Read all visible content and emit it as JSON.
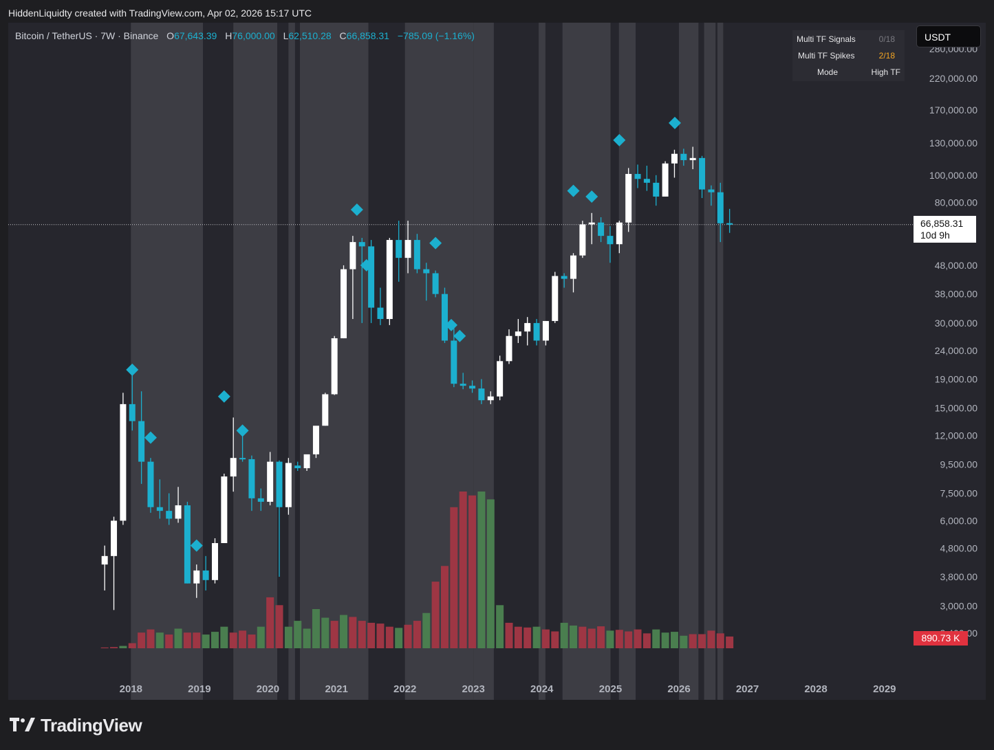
{
  "header": {
    "caption": "HiddenLiquidty created with TradingView.com, Apr 02, 2026 15:17 UTC"
  },
  "legend": {
    "symbol": "Bitcoin / TetherUS · 7W · Binance",
    "open_label": "O",
    "open": "67,643.39",
    "high_label": "H",
    "high": "76,000.00",
    "low_label": "L",
    "low": "62,510.28",
    "close_label": "C",
    "close": "66,858.31",
    "change": "−785.09 (−1.16%)"
  },
  "tf_table": {
    "rows": [
      {
        "label": "Multi TF Signals",
        "value": "0/18"
      },
      {
        "label": "Multi TF Spikes",
        "value": "2/18"
      },
      {
        "label": "Mode",
        "value": "High TF"
      }
    ]
  },
  "currency": "USDT",
  "price_tag": {
    "price": "66,858.31",
    "countdown": "10d 9h"
  },
  "volume_tag": "890.73 K",
  "brand": "TradingView",
  "colors": {
    "up": "#ffffff",
    "down": "#1cb0cf",
    "signal": "#1cb0cf",
    "vol_up": "#4a7e4f",
    "vol_down": "#9e3644",
    "band": "#3d3d44",
    "background": "#26262d"
  },
  "chart_data": {
    "type": "candlestick",
    "y_scale": "log",
    "ylim": [
      2100,
      320000
    ],
    "y_tick_labels": [
      "280,000.00",
      "220,000.00",
      "170,000.00",
      "130,000.00",
      "100,000.00",
      "80,000.00",
      "48,000.00",
      "38,000.00",
      "30,000.00",
      "24,000.00",
      "19,000.00",
      "15,000.00",
      "12,000.00",
      "9,500.00",
      "7,500.00",
      "6,000.00",
      "4,800.00",
      "3,800.00",
      "3,000.00",
      "2,400.00"
    ],
    "x_tick_labels": [
      "2018",
      "2019",
      "2020",
      "2021",
      "2022",
      "2023",
      "2024",
      "2025",
      "2026",
      "2027",
      "2028",
      "2029"
    ],
    "xlim": [
      "2017-06-01",
      "2029-06-01"
    ],
    "current_price": 66858.31,
    "candles": [
      {
        "date": "2017-08-14",
        "o": 4200,
        "h": 4900,
        "l": 3400,
        "c": 4500
      },
      {
        "date": "2017-10-02",
        "o": 4500,
        "h": 6200,
        "l": 2900,
        "c": 6000
      },
      {
        "date": "2017-11-20",
        "o": 6000,
        "h": 17000,
        "l": 5800,
        "c": 15500
      },
      {
        "date": "2018-01-08",
        "o": 15500,
        "h": 19800,
        "l": 12500,
        "c": 13500
      },
      {
        "date": "2018-02-26",
        "o": 13500,
        "h": 17200,
        "l": 8100,
        "c": 9700
      },
      {
        "date": "2018-04-16",
        "o": 9700,
        "h": 10000,
        "l": 6400,
        "c": 6700
      },
      {
        "date": "2018-06-04",
        "o": 6700,
        "h": 8400,
        "l": 6100,
        "c": 6500
      },
      {
        "date": "2018-07-23",
        "o": 6500,
        "h": 7500,
        "l": 5800,
        "c": 6100
      },
      {
        "date": "2018-09-10",
        "o": 6100,
        "h": 7900,
        "l": 5900,
        "c": 6800
      },
      {
        "date": "2018-10-29",
        "o": 6800,
        "h": 7000,
        "l": 3600,
        "c": 3600
      },
      {
        "date": "2018-12-17",
        "o": 3600,
        "h": 4200,
        "l": 3200,
        "c": 4000
      },
      {
        "date": "2019-02-04",
        "o": 4000,
        "h": 4500,
        "l": 3400,
        "c": 3700
      },
      {
        "date": "2019-03-25",
        "o": 3700,
        "h": 5200,
        "l": 3600,
        "c": 5000
      },
      {
        "date": "2019-05-13",
        "o": 5000,
        "h": 8800,
        "l": 5000,
        "c": 8600
      },
      {
        "date": "2019-07-01",
        "o": 8600,
        "h": 13900,
        "l": 7600,
        "c": 10000
      },
      {
        "date": "2019-08-19",
        "o": 10000,
        "h": 12000,
        "l": 9700,
        "c": 9900
      },
      {
        "date": "2019-10-07",
        "o": 9900,
        "h": 10200,
        "l": 6500,
        "c": 7200
      },
      {
        "date": "2019-11-25",
        "o": 7200,
        "h": 7800,
        "l": 6500,
        "c": 7000
      },
      {
        "date": "2020-01-13",
        "o": 7000,
        "h": 10500,
        "l": 6800,
        "c": 9700
      },
      {
        "date": "2020-03-02",
        "o": 9700,
        "h": 9800,
        "l": 3800,
        "c": 6700
      },
      {
        "date": "2020-04-20",
        "o": 6700,
        "h": 10000,
        "l": 6300,
        "c": 9600
      },
      {
        "date": "2020-06-08",
        "o": 9400,
        "h": 9700,
        "l": 9000,
        "c": 9200
      },
      {
        "date": "2020-07-27",
        "o": 9200,
        "h": 10200,
        "l": 9000,
        "c": 10300
      },
      {
        "date": "2020-09-14",
        "o": 10300,
        "h": 11800,
        "l": 10000,
        "c": 13000
      },
      {
        "date": "2020-11-02",
        "o": 13000,
        "h": 17000,
        "l": 13000,
        "c": 16800
      },
      {
        "date": "2020-12-21",
        "o": 16800,
        "h": 27000,
        "l": 16700,
        "c": 26500
      },
      {
        "date": "2021-02-08",
        "o": 26500,
        "h": 48000,
        "l": 26500,
        "c": 46500
      },
      {
        "date": "2021-03-29",
        "o": 46500,
        "h": 61000,
        "l": 31000,
        "c": 58000
      },
      {
        "date": "2021-05-17",
        "o": 58000,
        "h": 60000,
        "l": 30000,
        "c": 56000
      },
      {
        "date": "2021-07-05",
        "o": 56000,
        "h": 59000,
        "l": 30000,
        "c": 34000
      },
      {
        "date": "2021-08-23",
        "o": 34000,
        "h": 40000,
        "l": 29500,
        "c": 31000
      },
      {
        "date": "2021-10-11",
        "o": 31000,
        "h": 60000,
        "l": 29500,
        "c": 59000
      },
      {
        "date": "2021-11-29",
        "o": 59000,
        "h": 69000,
        "l": 42000,
        "c": 51000
      },
      {
        "date": "2022-01-17",
        "o": 51000,
        "h": 69000,
        "l": 45000,
        "c": 59000
      },
      {
        "date": "2022-03-07",
        "o": 59000,
        "h": 62000,
        "l": 45000,
        "c": 46500
      },
      {
        "date": "2022-04-25",
        "o": 46500,
        "h": 49000,
        "l": 36000,
        "c": 45000
      },
      {
        "date": "2022-06-13",
        "o": 45000,
        "h": 46000,
        "l": 37000,
        "c": 38000
      },
      {
        "date": "2022-08-01",
        "o": 38000,
        "h": 40000,
        "l": 25500,
        "c": 26000
      },
      {
        "date": "2022-09-19",
        "o": 26000,
        "h": 29000,
        "l": 17800,
        "c": 18300
      },
      {
        "date": "2022-11-07",
        "o": 18300,
        "h": 20000,
        "l": 17500,
        "c": 18000
      },
      {
        "date": "2022-12-26",
        "o": 18000,
        "h": 18800,
        "l": 17000,
        "c": 17600
      },
      {
        "date": "2023-02-13",
        "o": 17600,
        "h": 19000,
        "l": 15500,
        "c": 16000
      },
      {
        "date": "2023-04-03",
        "o": 16000,
        "h": 17200,
        "l": 15500,
        "c": 16500
      },
      {
        "date": "2023-05-22",
        "o": 16500,
        "h": 23000,
        "l": 16000,
        "c": 22000
      },
      {
        "date": "2023-07-10",
        "o": 22000,
        "h": 28500,
        "l": 21500,
        "c": 27000
      },
      {
        "date": "2023-08-28",
        "o": 27000,
        "h": 31000,
        "l": 25500,
        "c": 28000
      },
      {
        "date": "2023-10-16",
        "o": 28000,
        "h": 31500,
        "l": 25000,
        "c": 30000
      },
      {
        "date": "2023-12-04",
        "o": 30000,
        "h": 31000,
        "l": 25000,
        "c": 26000
      },
      {
        "date": "2024-01-22",
        "o": 26000,
        "h": 30500,
        "l": 25000,
        "c": 30500
      },
      {
        "date": "2024-03-11",
        "o": 30500,
        "h": 45500,
        "l": 30000,
        "c": 44000
      },
      {
        "date": "2024-04-29",
        "o": 44000,
        "h": 45000,
        "l": 40000,
        "c": 43000
      },
      {
        "date": "2024-06-17",
        "o": 43000,
        "h": 53000,
        "l": 38500,
        "c": 52000
      },
      {
        "date": "2024-08-05",
        "o": 52000,
        "h": 69000,
        "l": 51000,
        "c": 67000
      },
      {
        "date": "2024-09-23",
        "o": 67000,
        "h": 73500,
        "l": 57000,
        "c": 68000
      },
      {
        "date": "2024-11-11",
        "o": 68000,
        "h": 71000,
        "l": 58000,
        "c": 61000
      },
      {
        "date": "2024-12-30",
        "o": 61000,
        "h": 66000,
        "l": 49000,
        "c": 57000
      },
      {
        "date": "2025-02-17",
        "o": 57000,
        "h": 69000,
        "l": 53000,
        "c": 68000
      },
      {
        "date": "2025-04-07",
        "o": 68000,
        "h": 106000,
        "l": 63000,
        "c": 101000
      },
      {
        "date": "2025-05-26",
        "o": 101000,
        "h": 109000,
        "l": 90000,
        "c": 97000
      },
      {
        "date": "2025-07-14",
        "o": 97000,
        "h": 108000,
        "l": 88000,
        "c": 94000
      },
      {
        "date": "2025-09-01",
        "o": 94000,
        "h": 100000,
        "l": 78000,
        "c": 84000
      },
      {
        "date": "2025-10-20",
        "o": 84000,
        "h": 112000,
        "l": 84000,
        "c": 110000
      },
      {
        "date": "2025-12-08",
        "o": 110000,
        "h": 123000,
        "l": 98000,
        "c": 119000
      },
      {
        "date": "2026-01-26",
        "o": 119000,
        "h": 124000,
        "l": 108000,
        "c": 113000
      },
      {
        "date": "2026-03-16",
        "o": 113000,
        "h": 126000,
        "l": 105000,
        "c": 115000
      },
      {
        "date": "2026-05-04",
        "o": 115000,
        "h": 117000,
        "l": 83000,
        "c": 89000
      },
      {
        "date": "2026-06-22",
        "o": 89000,
        "h": 92000,
        "l": 78000,
        "c": 87000
      },
      {
        "date": "2026-08-10",
        "o": 87000,
        "h": 94000,
        "l": 58000,
        "c": 67600
      },
      {
        "date": "2026-09-28",
        "o": 67643.39,
        "h": 76000,
        "l": 62510.28,
        "c": 66858.31
      }
    ],
    "volume": [
      2,
      3,
      6,
      13,
      40,
      48,
      40,
      35,
      50,
      40,
      40,
      35,
      42,
      55,
      40,
      45,
      35,
      55,
      130,
      110,
      55,
      70,
      50,
      100,
      78,
      70,
      85,
      80,
      70,
      65,
      63,
      55,
      52,
      60,
      70,
      90,
      170,
      210,
      360,
      400,
      390,
      400,
      380,
      110,
      65,
      55,
      53,
      55,
      48,
      43,
      65,
      58,
      55,
      50,
      56,
      45,
      47,
      43,
      48,
      38,
      48,
      40,
      42,
      32,
      36,
      36,
      45,
      38,
      30
    ],
    "volume_up": [
      false,
      false,
      true,
      false,
      false,
      false,
      true,
      false,
      true,
      false,
      false,
      true,
      true,
      true,
      false,
      false,
      false,
      true,
      false,
      false,
      true,
      true,
      true,
      true,
      true,
      false,
      true,
      false,
      false,
      false,
      false,
      false,
      true,
      false,
      false,
      true,
      false,
      false,
      false,
      false,
      false,
      true,
      true,
      true,
      false,
      false,
      false,
      true,
      false,
      false,
      true,
      true,
      false,
      false,
      false,
      true,
      false,
      false,
      false,
      false,
      true,
      true,
      true,
      true,
      false,
      false,
      false,
      false,
      false
    ],
    "signals": [
      {
        "date": "2018-01-08",
        "price": 20500
      },
      {
        "date": "2018-04-16",
        "price": 11800
      },
      {
        "date": "2018-12-17",
        "price": 4900
      },
      {
        "date": "2019-05-13",
        "price": 16500
      },
      {
        "date": "2019-08-19",
        "price": 12500
      },
      {
        "date": "2021-04-20",
        "price": 75500
      },
      {
        "date": "2021-06-10",
        "price": 48000
      },
      {
        "date": "2022-06-13",
        "price": 57500
      },
      {
        "date": "2022-09-05",
        "price": 29500
      },
      {
        "date": "2022-10-20",
        "price": 27000
      },
      {
        "date": "2024-06-17",
        "price": 88000
      },
      {
        "date": "2024-09-23",
        "price": 84000
      },
      {
        "date": "2025-02-17",
        "price": 133000
      },
      {
        "date": "2025-12-10",
        "price": 153000
      }
    ],
    "bands": [
      [
        "2018-01-01",
        "2019-01-20"
      ],
      [
        "2019-07-01",
        "2020-02-20"
      ],
      [
        "2020-04-20",
        "2020-05-25"
      ],
      [
        "2020-06-20",
        "2021-06-20"
      ],
      [
        "2022-01-01",
        "2023-01-01"
      ],
      [
        "2023-01-01",
        "2023-04-20"
      ],
      [
        "2023-12-15",
        "2024-01-20"
      ],
      [
        "2024-04-20",
        "2025-01-01"
      ],
      [
        "2025-02-15",
        "2025-05-15"
      ],
      [
        "2026-01-01",
        "2026-04-15"
      ],
      [
        "2026-05-15",
        "2026-07-15"
      ],
      [
        "2026-07-25",
        "2026-08-25"
      ]
    ]
  }
}
